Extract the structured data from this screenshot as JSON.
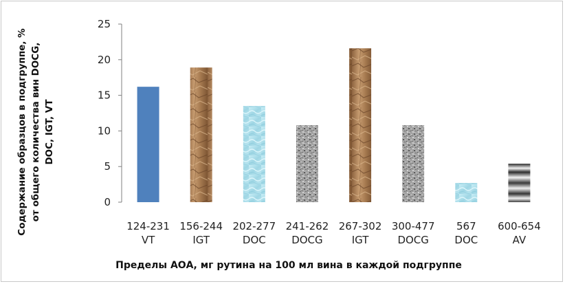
{
  "chart_data": {
    "type": "bar",
    "categories": [
      [
        "124-231",
        "VT"
      ],
      [
        "156-244",
        "IGT"
      ],
      [
        "202-277",
        "DOC"
      ],
      [
        "241-262",
        "DOCG"
      ],
      [
        "267-302",
        "IGT"
      ],
      [
        "300-477",
        "DOCG"
      ],
      [
        "567",
        "DOC"
      ],
      [
        "600-654",
        "AV"
      ]
    ],
    "values": [
      16.2,
      18.9,
      13.5,
      10.8,
      21.6,
      10.8,
      2.7,
      5.4
    ],
    "bar_styles": [
      "blue",
      "kraft",
      "aqua",
      "granite",
      "kraft",
      "granite",
      "aqua",
      "stripes"
    ],
    "ylim": [
      0,
      25
    ],
    "yticks": [
      0,
      5,
      10,
      15,
      20,
      25
    ],
    "ylabel_lines": [
      "Содержание образцов в подгруппе, %",
      "от  общего количества вин DOCG,",
      "DOC, IGT, VT"
    ],
    "xlabel": "Пределы АОА, мг рутина на 100 мл вина в каждой подгруппе",
    "grid": false,
    "legend": "none",
    "colors": {
      "blue": "#4f81bd",
      "kraft": "#b08358",
      "aqua": "#a9dbe8",
      "granite": "#9a9a9a",
      "stripes": "#3a3a3a",
      "axis": "#7f7f7f"
    }
  }
}
